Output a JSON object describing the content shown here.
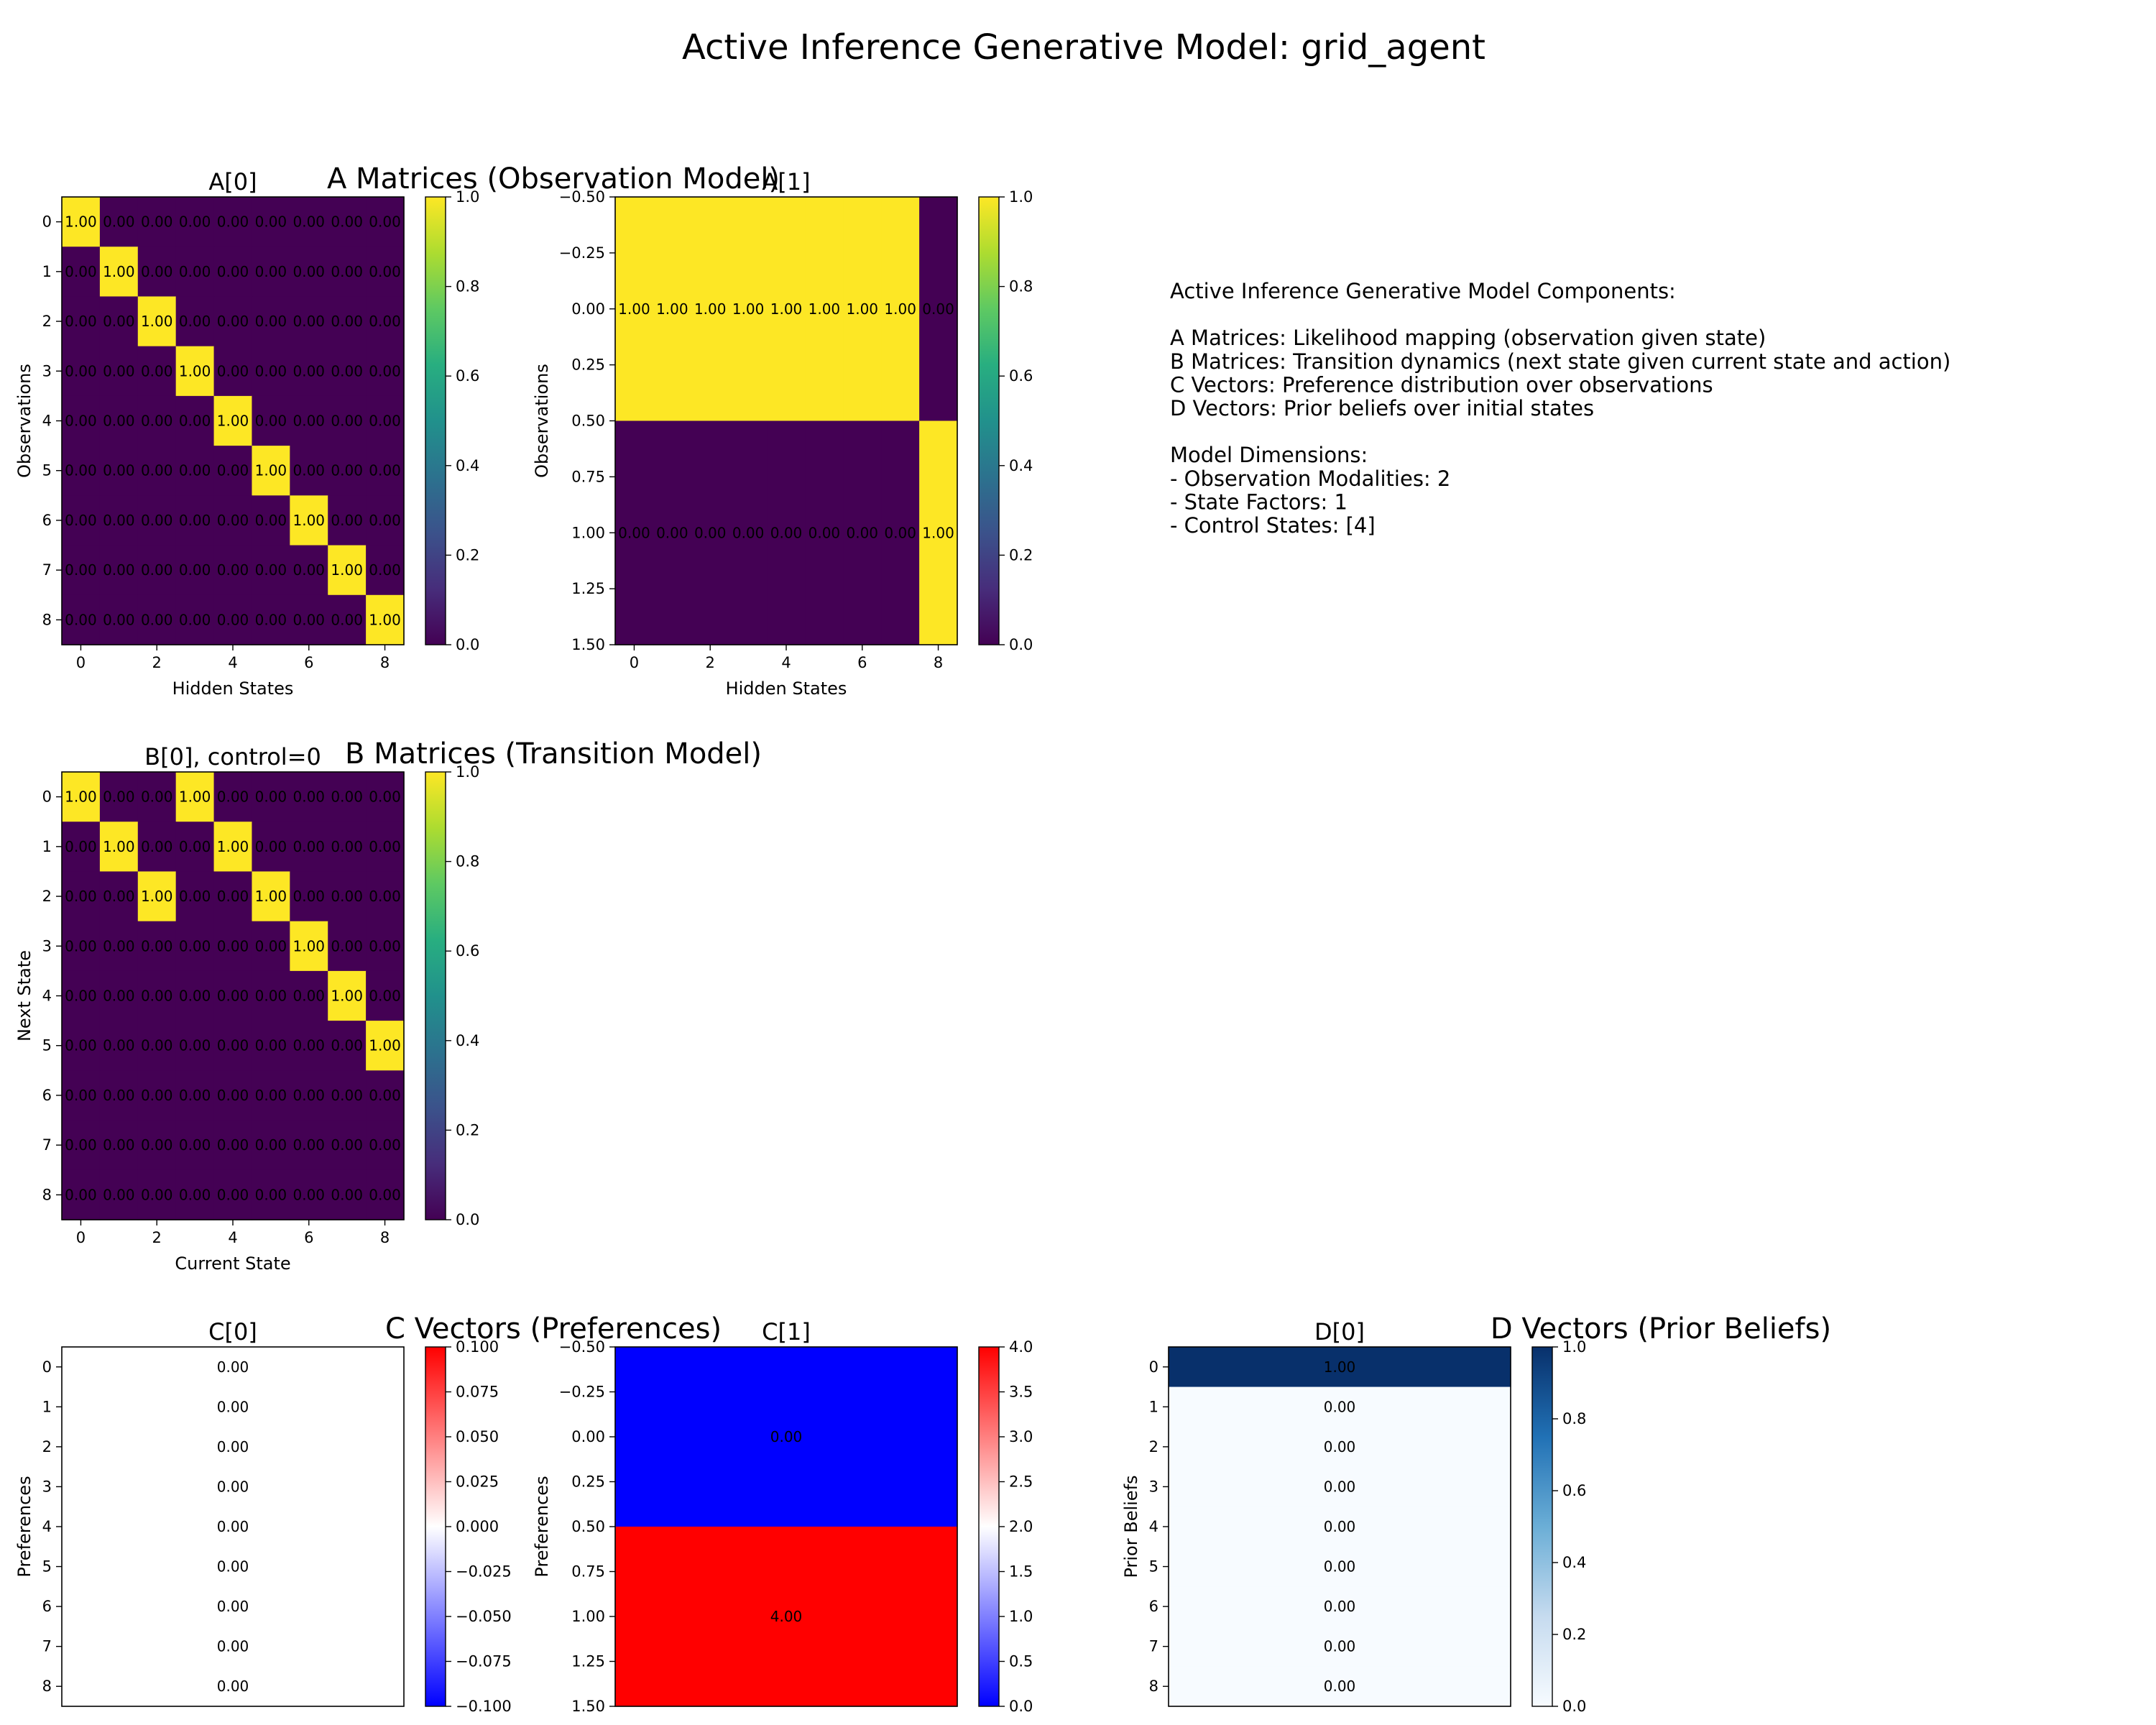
{
  "figure": {
    "suptitle": "Active Inference Generative Model: grid_agent",
    "section_titles": {
      "A": "A Matrices (Observation Model)",
      "B": "B Matrices (Transition Model)",
      "C": "C Vectors (Preferences)",
      "D": "D Vectors (Prior Beliefs)"
    },
    "info_lines": [
      "Active Inference Generative Model Components:",
      "",
      "A Matrices: Likelihood mapping (observation given state)",
      "B Matrices: Transition dynamics (next state given current state and action)",
      "C Vectors: Preference distribution over observations",
      "D Vectors: Prior beliefs over initial states",
      "",
      "Model Dimensions:",
      "- Observation Modalities: 2",
      "- State Factors: 1",
      "- Control States: [4]"
    ]
  },
  "chart_data": [
    {
      "id": "A0",
      "type": "heatmap",
      "title": "A[0]",
      "xlabel": "Hidden States",
      "ylabel": "Observations",
      "cmap": "viridis",
      "vmin": 0,
      "vmax": 1,
      "xticks": [
        "0",
        "2",
        "4",
        "6",
        "8"
      ],
      "yticks": [
        "0",
        "1",
        "2",
        "3",
        "4",
        "5",
        "6",
        "7",
        "8"
      ],
      "colorbar_ticks": [
        "0.0",
        "0.2",
        "0.4",
        "0.6",
        "0.8",
        "1.0"
      ],
      "matrix": [
        [
          1,
          0,
          0,
          0,
          0,
          0,
          0,
          0,
          0
        ],
        [
          0,
          1,
          0,
          0,
          0,
          0,
          0,
          0,
          0
        ],
        [
          0,
          0,
          1,
          0,
          0,
          0,
          0,
          0,
          0
        ],
        [
          0,
          0,
          0,
          1,
          0,
          0,
          0,
          0,
          0
        ],
        [
          0,
          0,
          0,
          0,
          1,
          0,
          0,
          0,
          0
        ],
        [
          0,
          0,
          0,
          0,
          0,
          1,
          0,
          0,
          0
        ],
        [
          0,
          0,
          0,
          0,
          0,
          0,
          1,
          0,
          0
        ],
        [
          0,
          0,
          0,
          0,
          0,
          0,
          0,
          1,
          0
        ],
        [
          0,
          0,
          0,
          0,
          0,
          0,
          0,
          0,
          1
        ]
      ]
    },
    {
      "id": "A1",
      "type": "heatmap",
      "title": "A[1]",
      "xlabel": "Hidden States",
      "ylabel": "Observations",
      "cmap": "viridis",
      "vmin": 0,
      "vmax": 1,
      "xticks": [
        "0",
        "2",
        "4",
        "6",
        "8"
      ],
      "yticks": [
        "−0.50",
        "−0.25",
        "0.00",
        "0.25",
        "0.50",
        "0.75",
        "1.00",
        "1.25",
        "1.50"
      ],
      "colorbar_ticks": [
        "0.0",
        "0.2",
        "0.4",
        "0.6",
        "0.8",
        "1.0"
      ],
      "matrix": [
        [
          1,
          1,
          1,
          1,
          1,
          1,
          1,
          1,
          0
        ],
        [
          0,
          0,
          0,
          0,
          0,
          0,
          0,
          0,
          1
        ]
      ]
    },
    {
      "id": "B0",
      "type": "heatmap",
      "title": "B[0], control=0",
      "xlabel": "Current State",
      "ylabel": "Next State",
      "cmap": "viridis",
      "vmin": 0,
      "vmax": 1,
      "xticks": [
        "0",
        "2",
        "4",
        "6",
        "8"
      ],
      "yticks": [
        "0",
        "1",
        "2",
        "3",
        "4",
        "5",
        "6",
        "7",
        "8"
      ],
      "colorbar_ticks": [
        "0.0",
        "0.2",
        "0.4",
        "0.6",
        "0.8",
        "1.0"
      ],
      "matrix": [
        [
          1,
          0,
          0,
          1,
          0,
          0,
          0,
          0,
          0
        ],
        [
          0,
          1,
          0,
          0,
          1,
          0,
          0,
          0,
          0
        ],
        [
          0,
          0,
          1,
          0,
          0,
          1,
          0,
          0,
          0
        ],
        [
          0,
          0,
          0,
          0,
          0,
          0,
          1,
          0,
          0
        ],
        [
          0,
          0,
          0,
          0,
          0,
          0,
          0,
          1,
          0
        ],
        [
          0,
          0,
          0,
          0,
          0,
          0,
          0,
          0,
          1
        ],
        [
          0,
          0,
          0,
          0,
          0,
          0,
          0,
          0,
          0
        ],
        [
          0,
          0,
          0,
          0,
          0,
          0,
          0,
          0,
          0
        ],
        [
          0,
          0,
          0,
          0,
          0,
          0,
          0,
          0,
          0
        ]
      ]
    },
    {
      "id": "C0",
      "type": "heatmap",
      "title": "C[0]",
      "xlabel": "",
      "ylabel": "Preferences",
      "cmap": "bwr",
      "vmin": -0.1,
      "vmax": 0.1,
      "xticks": [],
      "yticks": [
        "0",
        "1",
        "2",
        "3",
        "4",
        "5",
        "6",
        "7",
        "8"
      ],
      "colorbar_ticks": [
        "−0.100",
        "−0.075",
        "−0.050",
        "−0.025",
        "0.000",
        "0.025",
        "0.050",
        "0.075",
        "0.100"
      ],
      "matrix": [
        [
          0
        ],
        [
          0
        ],
        [
          0
        ],
        [
          0
        ],
        [
          0
        ],
        [
          0
        ],
        [
          0
        ],
        [
          0
        ],
        [
          0
        ]
      ]
    },
    {
      "id": "C1",
      "type": "heatmap",
      "title": "C[1]",
      "xlabel": "",
      "ylabel": "Preferences",
      "cmap": "bwr",
      "vmin": 0,
      "vmax": 4,
      "xticks": [],
      "yticks": [
        "−0.50",
        "−0.25",
        "0.00",
        "0.25",
        "0.50",
        "0.75",
        "1.00",
        "1.25",
        "1.50"
      ],
      "colorbar_ticks": [
        "0.0",
        "0.5",
        "1.0",
        "1.5",
        "2.0",
        "2.5",
        "3.0",
        "3.5",
        "4.0"
      ],
      "matrix": [
        [
          0
        ],
        [
          4
        ]
      ]
    },
    {
      "id": "D0",
      "type": "heatmap",
      "title": "D[0]",
      "xlabel": "",
      "ylabel": "Prior Beliefs",
      "cmap": "Blues",
      "vmin": 0,
      "vmax": 1,
      "xticks": [],
      "yticks": [
        "0",
        "1",
        "2",
        "3",
        "4",
        "5",
        "6",
        "7",
        "8"
      ],
      "colorbar_ticks": [
        "0.0",
        "0.2",
        "0.4",
        "0.6",
        "0.8",
        "1.0"
      ],
      "matrix": [
        [
          1
        ],
        [
          0
        ],
        [
          0
        ],
        [
          0
        ],
        [
          0
        ],
        [
          0
        ],
        [
          0
        ],
        [
          0
        ],
        [
          0
        ]
      ]
    }
  ]
}
